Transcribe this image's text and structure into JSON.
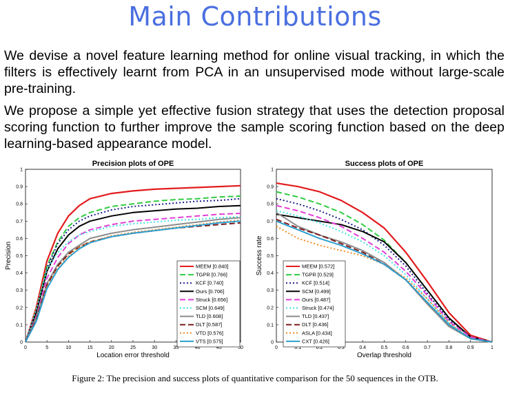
{
  "title": "Main Contributions",
  "paragraphs": [
    "We devise a novel feature learning method for online visual tracking, in which the filters is effectively learnt from PCA in an unsupervised mode without large-scale pre-training.",
    "We propose a simple yet effective fusion strategy that uses the detection proposal scoring function to further improve the sample scoring function based on the deep learning-based appearance model."
  ],
  "caption": "Figure 2: The precision and success plots of quantitative comparison for the 50 sequences in the OTB.",
  "chart_data": [
    {
      "type": "line",
      "title": "Precision plots of OPE",
      "xlabel": "Location error threshold",
      "ylabel": "Precision",
      "xlim": [
        0,
        50
      ],
      "ylim": [
        0,
        1
      ],
      "xticks": [
        0,
        5,
        10,
        15,
        20,
        25,
        30,
        35,
        40,
        45,
        50
      ],
      "yticks": [
        0,
        0.1,
        0.2,
        0.3,
        0.4,
        0.5,
        0.6,
        0.7,
        0.8,
        0.9,
        1
      ],
      "legend_position": "bottom-right",
      "x": [
        0,
        2.5,
        5,
        7.5,
        10,
        12.5,
        15,
        20,
        25,
        30,
        35,
        40,
        45,
        50
      ],
      "series": [
        {
          "name": "MEEM [0.840]",
          "color": "#e31a1c",
          "dash": "solid",
          "values": [
            0,
            0.2,
            0.47,
            0.63,
            0.73,
            0.79,
            0.83,
            0.86,
            0.875,
            0.885,
            0.89,
            0.895,
            0.9,
            0.905
          ]
        },
        {
          "name": "TGPR [0.766]",
          "color": "#2ecc40",
          "dash": "dash",
          "values": [
            0,
            0.18,
            0.44,
            0.58,
            0.67,
            0.72,
            0.75,
            0.785,
            0.8,
            0.815,
            0.825,
            0.83,
            0.84,
            0.845
          ]
        },
        {
          "name": "KCF [0.740]",
          "color": "#1a1a8c",
          "dash": "dot",
          "values": [
            0,
            0.18,
            0.43,
            0.57,
            0.65,
            0.7,
            0.73,
            0.765,
            0.785,
            0.795,
            0.805,
            0.815,
            0.82,
            0.83
          ]
        },
        {
          "name": "Ours [0.706]",
          "color": "#000000",
          "dash": "solid",
          "values": [
            0,
            0.17,
            0.41,
            0.54,
            0.62,
            0.67,
            0.7,
            0.73,
            0.75,
            0.76,
            0.77,
            0.775,
            0.785,
            0.79
          ]
        },
        {
          "name": "Struck [0.656]",
          "color": "#e23fd6",
          "dash": "dash",
          "values": [
            0,
            0.15,
            0.37,
            0.49,
            0.57,
            0.62,
            0.65,
            0.68,
            0.7,
            0.71,
            0.72,
            0.73,
            0.74,
            0.745
          ]
        },
        {
          "name": "SCM [0.649]",
          "color": "#40e0e0",
          "dash": "dot",
          "values": [
            0,
            0.19,
            0.42,
            0.52,
            0.58,
            0.62,
            0.64,
            0.67,
            0.685,
            0.695,
            0.705,
            0.71,
            0.72,
            0.725
          ]
        },
        {
          "name": "TLD [0.608]",
          "color": "#8c8c8c",
          "dash": "solid",
          "values": [
            0,
            0.14,
            0.34,
            0.45,
            0.52,
            0.56,
            0.6,
            0.63,
            0.65,
            0.665,
            0.68,
            0.695,
            0.71,
            0.72
          ]
        },
        {
          "name": "DLT [0.587]",
          "color": "#7b1a1a",
          "dash": "dash",
          "values": [
            0,
            0.13,
            0.33,
            0.44,
            0.51,
            0.55,
            0.58,
            0.61,
            0.63,
            0.645,
            0.66,
            0.67,
            0.68,
            0.69
          ]
        },
        {
          "name": "VTD [0.576]",
          "color": "#f08a24",
          "dash": "dot",
          "values": [
            0,
            0.12,
            0.32,
            0.43,
            0.5,
            0.55,
            0.58,
            0.615,
            0.635,
            0.65,
            0.665,
            0.68,
            0.695,
            0.705
          ]
        },
        {
          "name": "VTS [0.575]",
          "color": "#2b9fd0",
          "dash": "solid",
          "values": [
            0,
            0.12,
            0.31,
            0.42,
            0.49,
            0.54,
            0.575,
            0.61,
            0.63,
            0.645,
            0.66,
            0.675,
            0.69,
            0.7
          ]
        }
      ]
    },
    {
      "type": "line",
      "title": "Success plots of OPE",
      "xlabel": "Overlap threshold",
      "ylabel": "Success rate",
      "xlim": [
        0,
        1
      ],
      "ylim": [
        0,
        1
      ],
      "xticks": [
        0,
        0.1,
        0.2,
        0.3,
        0.4,
        0.5,
        0.6,
        0.7,
        0.8,
        0.9,
        1
      ],
      "yticks": [
        0,
        0.1,
        0.2,
        0.3,
        0.4,
        0.5,
        0.6,
        0.7,
        0.8,
        0.9,
        1
      ],
      "legend_position": "bottom-left",
      "x": [
        0,
        0.1,
        0.2,
        0.3,
        0.4,
        0.5,
        0.6,
        0.7,
        0.8,
        0.9,
        1
      ],
      "series": [
        {
          "name": "MEEM [0.572]",
          "color": "#e31a1c",
          "dash": "solid",
          "values": [
            0.92,
            0.9,
            0.87,
            0.82,
            0.75,
            0.66,
            0.52,
            0.35,
            0.17,
            0.04,
            0
          ]
        },
        {
          "name": "TGPR [0.529]",
          "color": "#2ecc40",
          "dash": "dash",
          "values": [
            0.87,
            0.84,
            0.8,
            0.75,
            0.68,
            0.59,
            0.46,
            0.3,
            0.14,
            0.03,
            0
          ]
        },
        {
          "name": "KCF [0.514]",
          "color": "#1a1a8c",
          "dash": "dot",
          "values": [
            0.83,
            0.8,
            0.76,
            0.71,
            0.65,
            0.56,
            0.44,
            0.28,
            0.13,
            0.03,
            0
          ]
        },
        {
          "name": "SCM [0.499]",
          "color": "#000000",
          "dash": "solid",
          "values": [
            0.74,
            0.72,
            0.7,
            0.68,
            0.64,
            0.58,
            0.46,
            0.3,
            0.14,
            0.03,
            0
          ]
        },
        {
          "name": "Ours [0.487]",
          "color": "#e23fd6",
          "dash": "dash",
          "values": [
            0.79,
            0.76,
            0.72,
            0.67,
            0.6,
            0.52,
            0.41,
            0.27,
            0.12,
            0.03,
            0
          ]
        },
        {
          "name": "Struck [0.474]",
          "color": "#40e0e0",
          "dash": "dot",
          "values": [
            0.76,
            0.73,
            0.69,
            0.64,
            0.58,
            0.5,
            0.39,
            0.25,
            0.11,
            0.02,
            0
          ]
        },
        {
          "name": "TLD [0.437]",
          "color": "#8c8c8c",
          "dash": "solid",
          "values": [
            0.75,
            0.67,
            0.62,
            0.58,
            0.53,
            0.46,
            0.36,
            0.22,
            0.09,
            0.02,
            0
          ]
        },
        {
          "name": "DLT [0.436]",
          "color": "#7b1a1a",
          "dash": "dash",
          "values": [
            0.71,
            0.66,
            0.62,
            0.57,
            0.52,
            0.45,
            0.36,
            0.23,
            0.1,
            0.02,
            0
          ]
        },
        {
          "name": "ASLA [0.434]",
          "color": "#f08a24",
          "dash": "dot",
          "values": [
            0.67,
            0.6,
            0.56,
            0.53,
            0.5,
            0.45,
            0.37,
            0.25,
            0.11,
            0.02,
            0
          ]
        },
        {
          "name": "CXT [0.426]",
          "color": "#2b9fd0",
          "dash": "solid",
          "values": [
            0.7,
            0.65,
            0.6,
            0.56,
            0.51,
            0.45,
            0.36,
            0.23,
            0.1,
            0.02,
            0
          ]
        }
      ]
    }
  ]
}
